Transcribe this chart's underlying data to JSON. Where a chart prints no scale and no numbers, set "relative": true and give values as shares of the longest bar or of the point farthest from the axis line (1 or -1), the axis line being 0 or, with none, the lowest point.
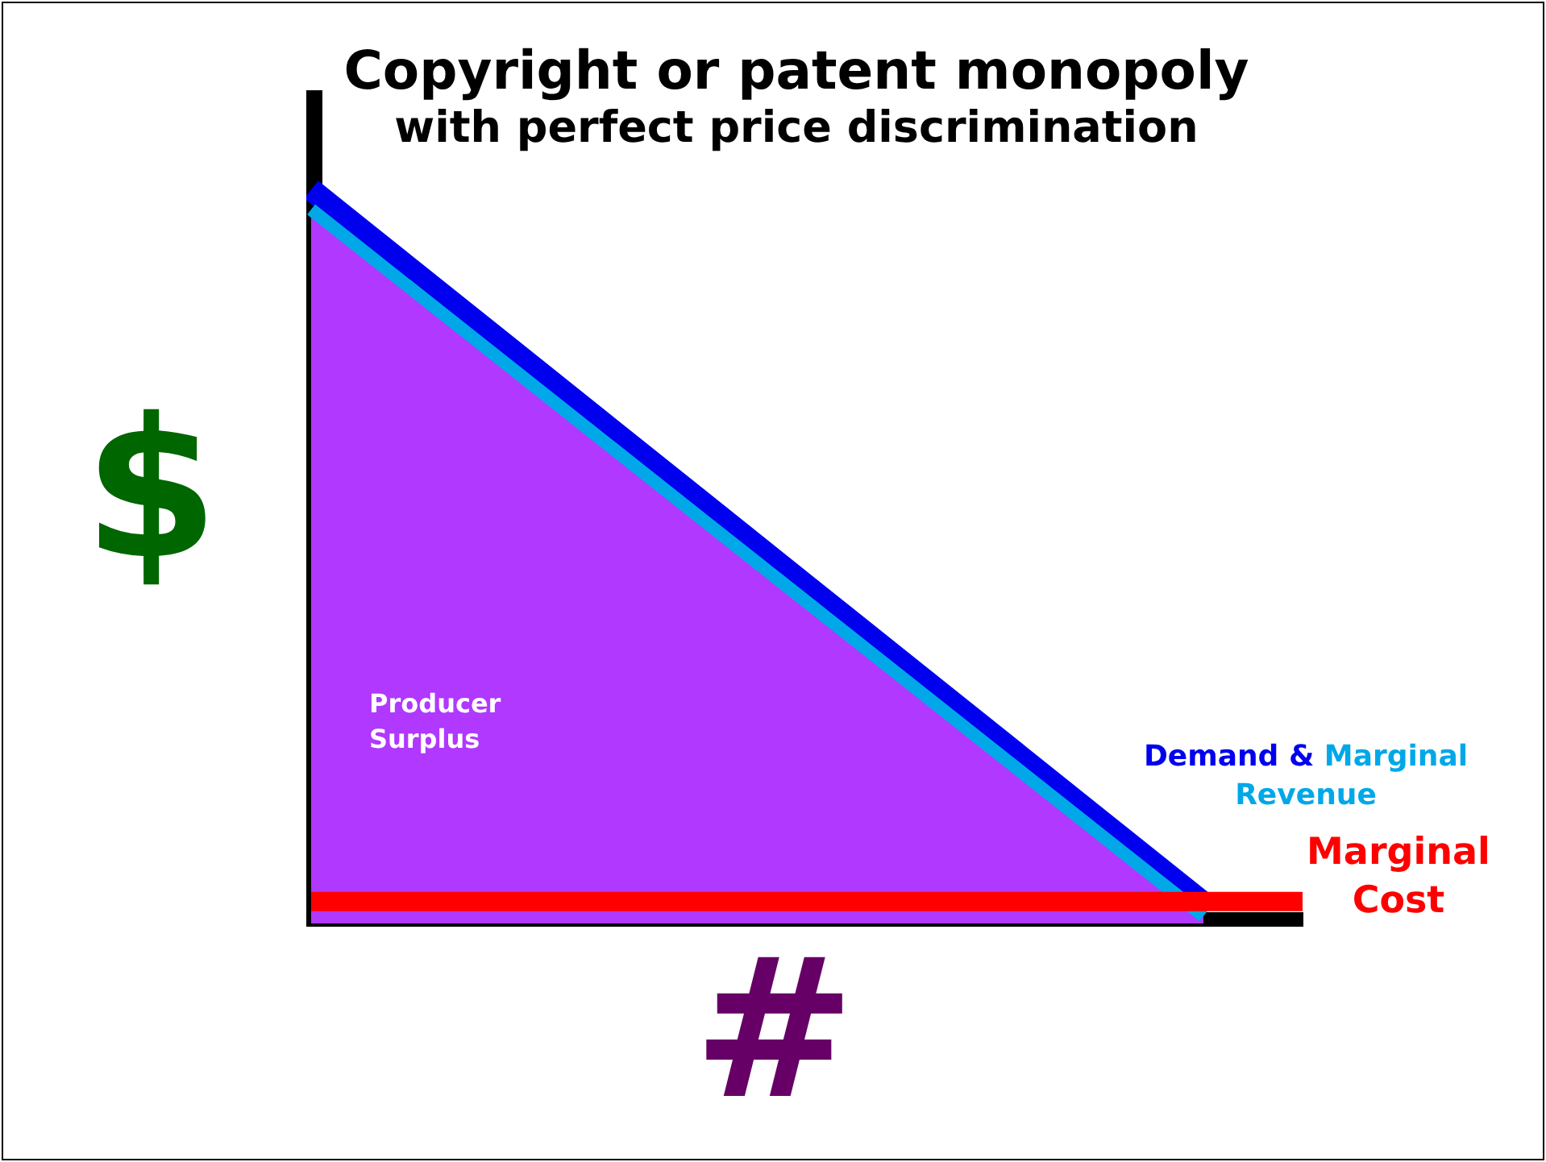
{
  "chart_data": {
    "type": "line",
    "title": "Copyright or patent monopoly",
    "subtitle": "with perfect price discrimination",
    "xlabel": "#",
    "ylabel": "$",
    "relative": true,
    "legend": false,
    "grid": false,
    "tick_labels": false,
    "marker": "none",
    "annotations": [
      "&"
    ],
    "categories": [
      null,
      null,
      null,
      null,
      null,
      null,
      null,
      null,
      null,
      null,
      null
    ],
    "series": [
      {
        "name": "Producer Surplus",
        "type": "area",
        "color": "#b038ff",
        "values": [
          0.973,
          0.866,
          0.759,
          0.652,
          0.545,
          0.438,
          0.331,
          0.224,
          0.117,
          0.01,
          null
        ]
      },
      {
        "name": "Demand",
        "color": "#0000ee",
        "values": [
          1,
          0.892,
          0.784,
          0.676,
          0.568,
          0.46,
          0.352,
          0.244,
          0.136,
          0.028,
          null
        ]
      },
      {
        "name": "Marginal Revenue",
        "color": "#00a8e8",
        "values": [
          0.973,
          0.866,
          0.759,
          0.652,
          0.545,
          0.438,
          0.331,
          0.224,
          0.117,
          0.01,
          null
        ]
      },
      {
        "name": "Marginal Cost",
        "color": "#ff0000",
        "values": [
          0.03,
          0.03,
          0.03,
          0.03,
          0.03,
          0.03,
          0.03,
          0.03,
          0.03,
          0.03,
          0.03
        ]
      }
    ]
  }
}
